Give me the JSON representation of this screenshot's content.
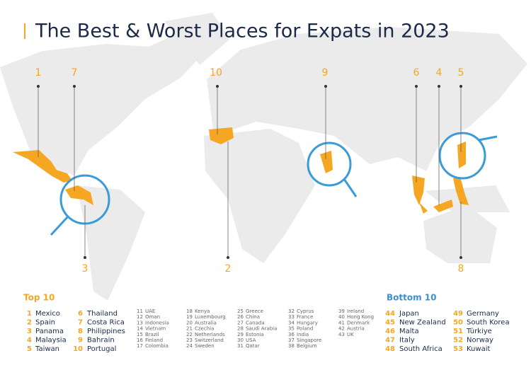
{
  "title": "The Best & Worst Places for Expats in 2023",
  "map_labels": [
    1,
    7,
    10,
    9,
    6,
    4,
    5,
    3,
    2,
    8
  ],
  "top10": {
    "heading": "Top 10",
    "items": [
      {
        "rank": 1,
        "country": "Mexico"
      },
      {
        "rank": 2,
        "country": "Spain"
      },
      {
        "rank": 3,
        "country": "Panama"
      },
      {
        "rank": 4,
        "country": "Malaysia"
      },
      {
        "rank": 5,
        "country": "Taiwan"
      },
      {
        "rank": 6,
        "country": "Thailand"
      },
      {
        "rank": 7,
        "country": "Costa Rica"
      },
      {
        "rank": 8,
        "country": "Philippines"
      },
      {
        "rank": 9,
        "country": "Bahrain"
      },
      {
        "rank": 10,
        "country": "Portugal"
      }
    ]
  },
  "middle": [
    {
      "rank": 11,
      "country": "UAE"
    },
    {
      "rank": 12,
      "country": "Oman"
    },
    {
      "rank": 13,
      "country": "Indonesia"
    },
    {
      "rank": 14,
      "country": "Vietnam"
    },
    {
      "rank": 15,
      "country": "Brazil"
    },
    {
      "rank": 16,
      "country": "Finland"
    },
    {
      "rank": 17,
      "country": "Colombia"
    },
    {
      "rank": 18,
      "country": "Kenya"
    },
    {
      "rank": 19,
      "country": "Luxembourg"
    },
    {
      "rank": 20,
      "country": "Australia"
    },
    {
      "rank": 21,
      "country": "Czechia"
    },
    {
      "rank": 22,
      "country": "Netherlands"
    },
    {
      "rank": 23,
      "country": "Switzerland"
    },
    {
      "rank": 24,
      "country": "Sweden"
    },
    {
      "rank": 25,
      "country": "Greece"
    },
    {
      "rank": 26,
      "country": "China"
    },
    {
      "rank": 27,
      "country": "Canada"
    },
    {
      "rank": 28,
      "country": "Saudi Arabia"
    },
    {
      "rank": 29,
      "country": "Estonia"
    },
    {
      "rank": 30,
      "country": "USA"
    },
    {
      "rank": 31,
      "country": "Qatar"
    },
    {
      "rank": 32,
      "country": "Cyprus"
    },
    {
      "rank": 33,
      "country": "France"
    },
    {
      "rank": 34,
      "country": "Hungary"
    },
    {
      "rank": 35,
      "country": "Poland"
    },
    {
      "rank": 36,
      "country": "India"
    },
    {
      "rank": 37,
      "country": "Singapore"
    },
    {
      "rank": 38,
      "country": "Belgium"
    },
    {
      "rank": 39,
      "country": "Ireland"
    },
    {
      "rank": 40,
      "country": "Hong Kong"
    },
    {
      "rank": 41,
      "country": "Denmark"
    },
    {
      "rank": 42,
      "country": "Austria"
    },
    {
      "rank": 43,
      "country": "UK"
    }
  ],
  "bottom10": {
    "heading": "Bottom 10",
    "items": [
      {
        "rank": 44,
        "country": "Japan"
      },
      {
        "rank": 45,
        "country": "New Zealand"
      },
      {
        "rank": 46,
        "country": "Malta"
      },
      {
        "rank": 47,
        "country": "Italy"
      },
      {
        "rank": 48,
        "country": "South Africa"
      },
      {
        "rank": 49,
        "country": "Germany"
      },
      {
        "rank": 50,
        "country": "South Korea"
      },
      {
        "rank": 51,
        "country": "Türkiye"
      },
      {
        "rank": 52,
        "country": "Norway"
      },
      {
        "rank": 53,
        "country": "Kuwait"
      }
    ]
  }
}
